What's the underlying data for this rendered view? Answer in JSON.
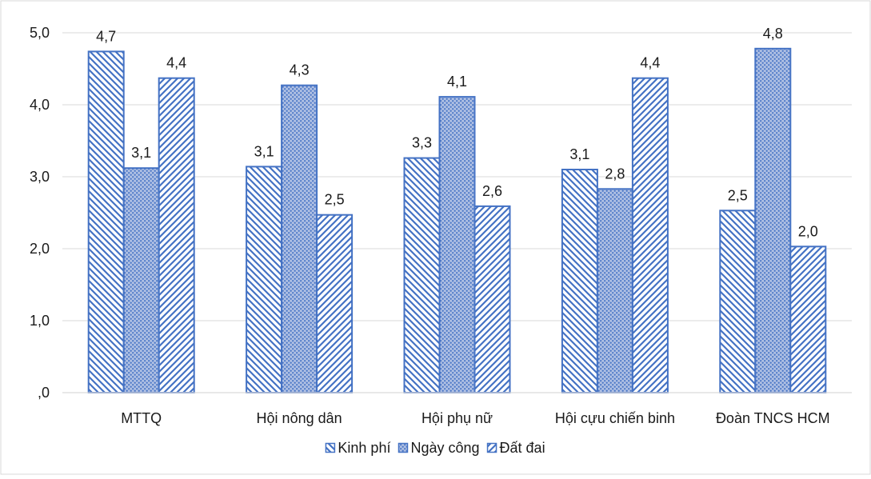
{
  "chart_data": {
    "type": "bar",
    "categories": [
      "MTTQ",
      "Hội nông dân",
      "Hội phụ nữ",
      "Hội cựu chiến binh",
      "Đoàn TNCS HCM"
    ],
    "series": [
      {
        "name": "Kinh phí",
        "values": [
          4.74,
          3.14,
          3.26,
          3.1,
          2.53
        ],
        "labels": [
          "4,7",
          "3,1",
          "3,3",
          "3,1",
          "2,5"
        ]
      },
      {
        "name": "Ngày công",
        "values": [
          3.12,
          4.27,
          4.11,
          2.83,
          4.78
        ],
        "labels": [
          "3,1",
          "4,3",
          "4,1",
          "2,8",
          "4,8"
        ]
      },
      {
        "name": "Đất đai",
        "values": [
          4.37,
          2.47,
          2.59,
          4.37,
          2.03
        ],
        "labels": [
          "4,4",
          "2,5",
          "2,6",
          "4,4",
          "2,0"
        ]
      }
    ],
    "ylim": [
      0,
      5
    ],
    "yticks": [
      ",0",
      "1,0",
      "2,0",
      "3,0",
      "4,0",
      "5,0"
    ],
    "grid": true,
    "legend": "bottom",
    "colors": {
      "stroke": "#4472c4",
      "fill": "#ffffff",
      "gridline": "#d9d9d9",
      "text": "#1a1a1a"
    }
  }
}
